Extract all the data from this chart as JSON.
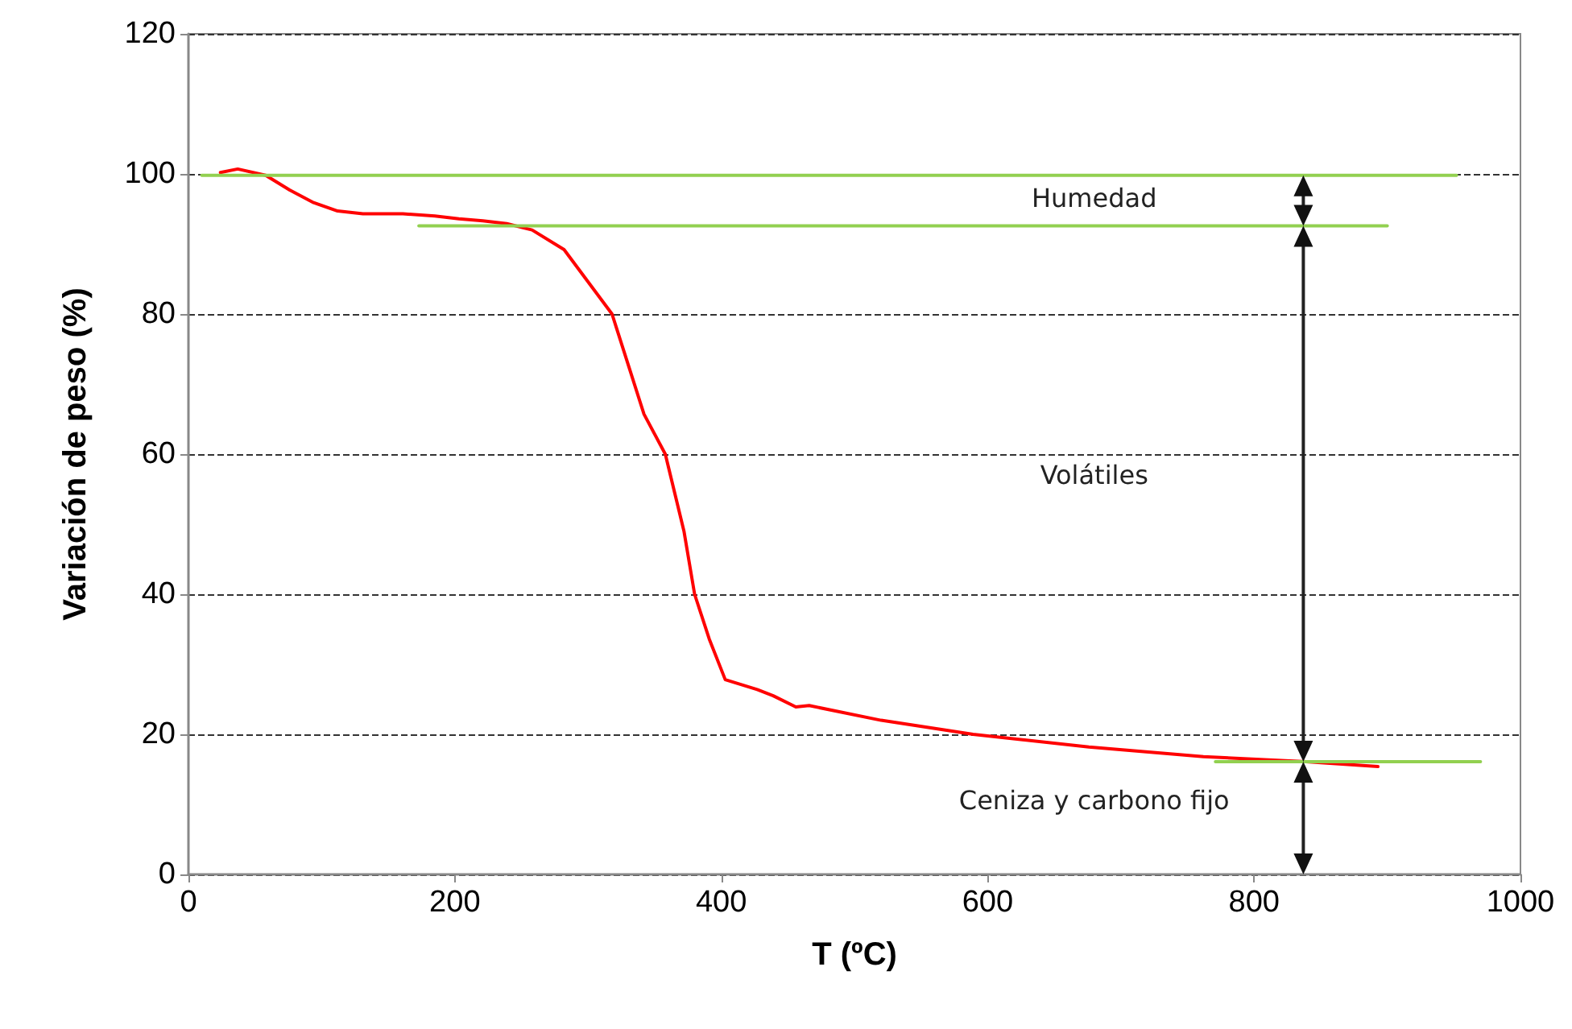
{
  "chart_data": {
    "type": "line",
    "xlabel": "T (ºC)",
    "ylabel": "Variación de peso (%)",
    "xlim": [
      0,
      1000
    ],
    "xticks": [
      0,
      200,
      400,
      600,
      800,
      1000
    ],
    "ylim": [
      0,
      120
    ],
    "yticks": [
      0,
      20,
      40,
      60,
      80,
      100,
      120
    ],
    "grid": "y",
    "marker": "none",
    "line_style": "solid",
    "series": [
      {
        "color": "#ff0000",
        "x": [
          24,
          37,
          58,
          76,
          94,
          112,
          131,
          161,
          185,
          203,
          221,
          239,
          258,
          282,
          318,
          342,
          358,
          372,
          380,
          391,
          403,
          427,
          439,
          456,
          466,
          520,
          589,
          676,
          762,
          839,
          893
        ],
        "values": [
          100.2,
          100.7,
          99.8,
          97.7,
          95.9,
          94.7,
          94.3,
          94.3,
          94,
          93.6,
          93.3,
          92.9,
          92,
          89.2,
          80,
          65.7,
          60,
          49,
          40,
          33.6,
          27.8,
          26.4,
          25.5,
          23.9,
          24.1,
          22,
          20,
          18.2,
          16.8,
          16.1,
          15.4
        ]
      },
      {
        "color": "#92d050",
        "x": [
          10,
          952
        ],
        "values": [
          99.8,
          99.8
        ]
      },
      {
        "color": "#92d050",
        "x": [
          173,
          900
        ],
        "values": [
          92.6,
          92.6
        ]
      },
      {
        "color": "#92d050",
        "x": [
          771,
          970
        ],
        "values": [
          16.1,
          16.1
        ]
      }
    ],
    "annotations": [
      "Humedad",
      "Volátiles",
      "Ceniza y carbono fijo"
    ]
  }
}
